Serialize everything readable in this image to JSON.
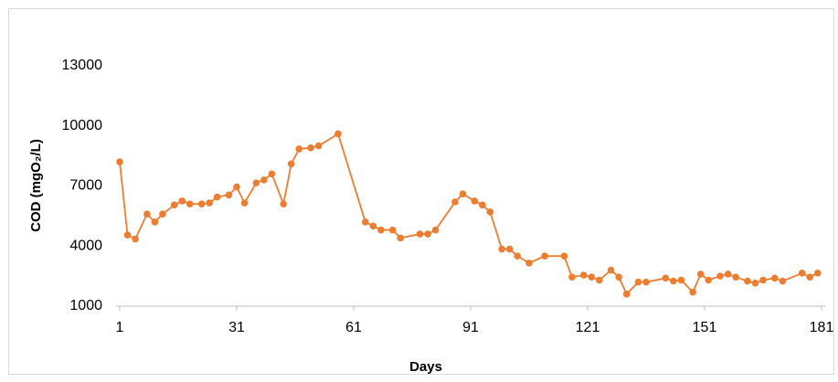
{
  "chart_data": {
    "type": "line",
    "xlabel": "Days",
    "ylabel": "COD (mgO₂/L)",
    "x": [
      1,
      3,
      5,
      8,
      10,
      12,
      15,
      17,
      19,
      22,
      24,
      26,
      29,
      31,
      33,
      36,
      38,
      40,
      43,
      45,
      47,
      50,
      52,
      57,
      64,
      66,
      68,
      71,
      73,
      78,
      80,
      82,
      87,
      89,
      92,
      94,
      96,
      99,
      101,
      103,
      106,
      110,
      115,
      117,
      120,
      122,
      124,
      127,
      129,
      131,
      134,
      136,
      141,
      143,
      145,
      148,
      150,
      152,
      155,
      157,
      159,
      162,
      164,
      166,
      169,
      171,
      176,
      178,
      180
    ],
    "series": [
      {
        "name": "COD",
        "color": "#ed7d31",
        "values": [
          8200,
          4550,
          4350,
          5600,
          5200,
          5600,
          6050,
          6250,
          6100,
          6100,
          6150,
          6450,
          6550,
          6950,
          6150,
          7150,
          7300,
          7600,
          6100,
          8100,
          8850,
          8900,
          9000,
          9600,
          5200,
          5000,
          4800,
          4800,
          4400,
          4600,
          4600,
          4800,
          6200,
          6600,
          6250,
          6050,
          5700,
          3850,
          3850,
          3500,
          3150,
          3500,
          3500,
          2450,
          2550,
          2450,
          2300,
          2800,
          2450,
          1600,
          2200,
          2200,
          2400,
          2250,
          2300,
          1700,
          2600,
          2300,
          2500,
          2600,
          2450,
          2250,
          2150,
          2300,
          2400,
          2250,
          2650,
          2450,
          2650
        ]
      }
    ],
    "xlim": [
      1,
      181
    ],
    "xticks": [
      1,
      31,
      61,
      91,
      121,
      151,
      181
    ],
    "ylim": [
      1000,
      14000
    ],
    "yticks": [
      1000,
      4000,
      7000,
      10000,
      13000
    ],
    "grid": false
  }
}
